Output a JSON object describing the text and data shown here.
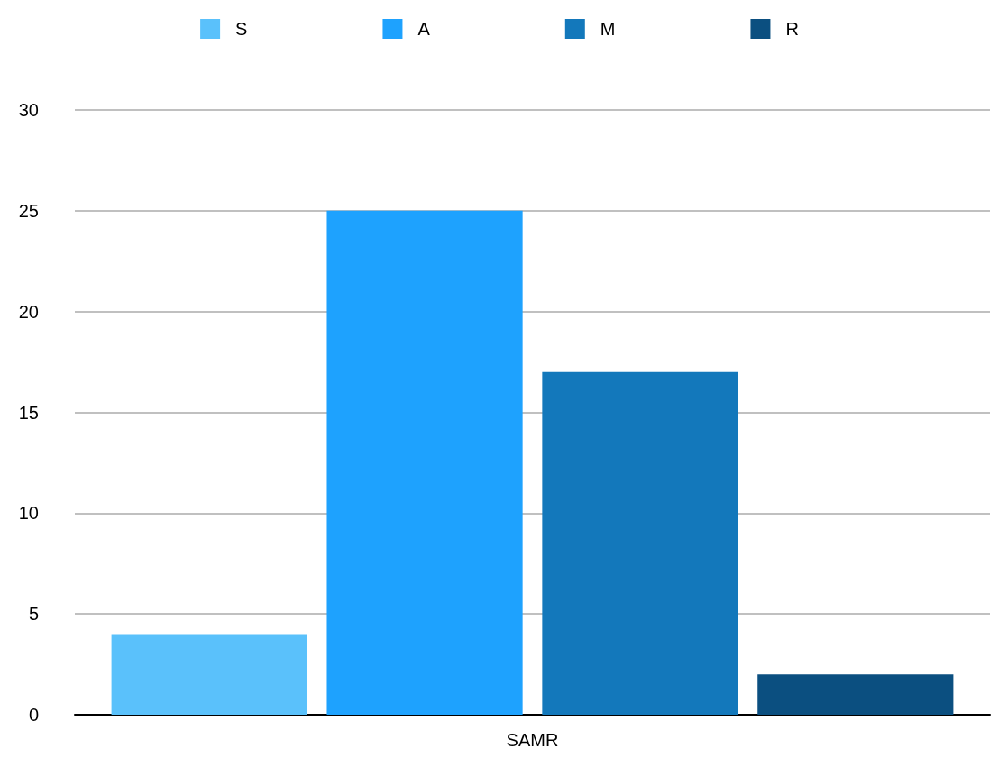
{
  "chart_data": {
    "type": "bar",
    "categories": [
      "SAMR"
    ],
    "series": [
      {
        "name": "S",
        "color": "#5ac1fb",
        "values": [
          4
        ]
      },
      {
        "name": "A",
        "color": "#1ea2fe",
        "values": [
          25
        ]
      },
      {
        "name": "M",
        "color": "#1378bb",
        "values": [
          17
        ]
      },
      {
        "name": "R",
        "color": "#0b4f80",
        "values": [
          2
        ]
      }
    ],
    "ylim": [
      0,
      30
    ],
    "yticks": [
      0,
      5,
      10,
      15,
      20,
      25,
      30
    ],
    "grid": "y",
    "legend": "top"
  }
}
